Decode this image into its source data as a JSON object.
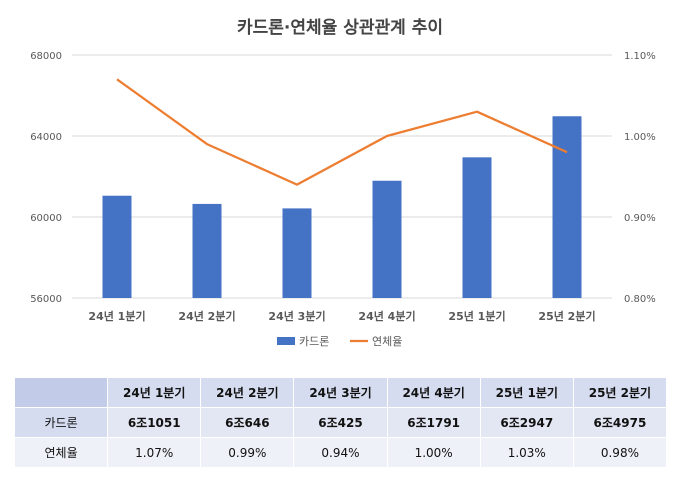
{
  "chart_data": {
    "type": "bar+line",
    "title": "카드론·연체율 상관관계 추이",
    "categories": [
      "24년 1분기",
      "24년 2분기",
      "24년 3분기",
      "24년 4분기",
      "25년 1분기",
      "25년 2분기"
    ],
    "series": [
      {
        "name": "카드론",
        "type": "bar",
        "axis": "left",
        "values": [
          61051,
          60646,
          60425,
          61791,
          62947,
          64975
        ]
      },
      {
        "name": "연체율",
        "type": "line",
        "axis": "right",
        "values": [
          1.07,
          0.99,
          0.94,
          1.0,
          1.03,
          0.98
        ]
      }
    ],
    "y_left": {
      "ylim": [
        56000,
        68000
      ],
      "ticks": [
        "56000",
        "60000",
        "64000",
        "68000"
      ]
    },
    "y_right": {
      "ylim": [
        0.8,
        1.1
      ],
      "ticks": [
        "0.80%",
        "0.90%",
        "1.00%",
        "1.10%"
      ]
    },
    "grid": true,
    "legend_position": "bottom",
    "colors": {
      "bar": "#4472c4",
      "line": "#ed7d31",
      "grid": "#d9d9d9"
    }
  },
  "table": {
    "headers": [
      "24년 1분기",
      "24년 2분기",
      "24년 3분기",
      "24년 4분기",
      "25년 1분기",
      "25년 2분기"
    ],
    "rows": [
      {
        "label": "카드론",
        "values": [
          "6조1051",
          "6조646",
          "6조425",
          "6조1791",
          "6조2947",
          "6조4975"
        ]
      },
      {
        "label": "연체율",
        "values": [
          "1.07%",
          "0.99%",
          "0.94%",
          "1.00%",
          "1.03%",
          "0.98%"
        ]
      }
    ]
  }
}
